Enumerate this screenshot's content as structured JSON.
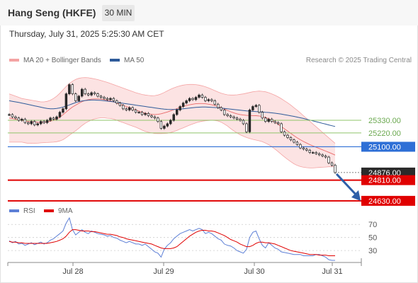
{
  "header": {
    "title": "Hang Seng (HKFE)",
    "timeframe": "30 MIN"
  },
  "datetime": "Thursday, July 31, 2025 5:25:30 AM CET",
  "credit": "Research © 2025 Trading Central",
  "colors": {
    "bollinger": "#f4a3a3",
    "ma50": "#2e5b9a",
    "rsi": "#5c7fd6",
    "rsi_ma": "#e00000",
    "up": "#2a2a2a",
    "down": "#ffffff",
    "green_level": "#8fc46a",
    "blue_level": "#2e6fd6",
    "red_level": "#e00000",
    "arrow": "#2e5fa8"
  },
  "chart_data": [
    {
      "type": "candlestick",
      "legend": [
        "MA 20 + Bollinger Bands",
        "MA 50"
      ],
      "x_ticks": [
        "Jul 28",
        "Jul 29",
        "Jul 30",
        "Jul 31"
      ],
      "ylim": [
        24580,
        25810
      ],
      "levels": [
        {
          "value": 25330,
          "label": "25330.00",
          "kind": "resistance"
        },
        {
          "value": 25220,
          "label": "25220.00",
          "kind": "resistance"
        },
        {
          "value": 25100,
          "label": "25100.00",
          "kind": "pivot"
        },
        {
          "value": 24876,
          "label": "24876.00",
          "kind": "last"
        },
        {
          "value": 24810,
          "label": "24810.00",
          "kind": "target"
        },
        {
          "value": 24630,
          "label": "24630.00",
          "kind": "target"
        }
      ],
      "close": [
        25380,
        25360,
        25350,
        25330,
        25340,
        25310,
        25300,
        25320,
        25290,
        25300,
        25320,
        25310,
        25330,
        25350,
        25340,
        25360,
        25400,
        25430,
        25560,
        25640,
        25560,
        25500,
        25540,
        25600,
        25560,
        25550,
        25570,
        25560,
        25540,
        25530,
        25520,
        25510,
        25520,
        25500,
        25480,
        25460,
        25430,
        25420,
        25440,
        25420,
        25400,
        25400,
        25380,
        25390,
        25370,
        25360,
        25350,
        25320,
        25260,
        25280,
        25300,
        25330,
        25380,
        25420,
        25450,
        25480,
        25500,
        25520,
        25510,
        25530,
        25550,
        25530,
        25500,
        25510,
        25500,
        25470,
        25440,
        25420,
        25380,
        25370,
        25360,
        25350,
        25340,
        25330,
        25300,
        25230,
        25420,
        25450,
        25460,
        25400,
        25350,
        25320,
        25340,
        25320,
        25310,
        25300,
        25230,
        25200,
        25180,
        25160,
        25140,
        25120,
        25090,
        25080,
        25070,
        25050,
        25050,
        25040,
        25030,
        25020,
        25010,
        24960,
        24940,
        24876
      ],
      "ma20": [
        25350,
        25345,
        25340,
        25335,
        25330,
        25325,
        25320,
        25318,
        25315,
        25313,
        25312,
        25313,
        25316,
        25322,
        25330,
        25342,
        25358,
        25378,
        25402,
        25425,
        25445,
        25462,
        25478,
        25492,
        25503,
        25510,
        25514,
        25516,
        25516,
        25514,
        25510,
        25504,
        25498,
        25490,
        25480,
        25470,
        25460,
        25450,
        25440,
        25430,
        25420,
        25410,
        25400,
        25392,
        25386,
        25382,
        25380,
        25382,
        25387,
        25394,
        25402,
        25412,
        25422,
        25432,
        25442,
        25450,
        25458,
        25465,
        25470,
        25474,
        25476,
        25476,
        25474,
        25470,
        25465,
        25458,
        25450,
        25440,
        25428,
        25416,
        25404,
        25394,
        25386,
        25380,
        25376,
        25373,
        25372,
        25371,
        25370,
        25368,
        25363,
        25355,
        25344,
        25330,
        25314,
        25296,
        25276,
        25256,
        25236,
        25216,
        25196,
        25178,
        25161,
        25146,
        25132,
        25119,
        25107,
        25096,
        25085,
        25074,
        25063,
        25052,
        25040,
        25028
      ],
      "bb_upper": [
        25560,
        25550,
        25540,
        25530,
        25520,
        25515,
        25510,
        25505,
        25500,
        25495,
        25490,
        25490,
        25495,
        25505,
        25520,
        25540,
        25565,
        25595,
        25625,
        25650,
        25670,
        25685,
        25695,
        25700,
        25702,
        25700,
        25695,
        25690,
        25684,
        25676,
        25668,
        25660,
        25650,
        25640,
        25630,
        25620,
        25610,
        25600,
        25590,
        25580,
        25570,
        25562,
        25555,
        25550,
        25546,
        25544,
        25545,
        25550,
        25560,
        25572,
        25586,
        25600,
        25612,
        25622,
        25630,
        25636,
        25640,
        25642,
        25642,
        25640,
        25636,
        25630,
        25622,
        25612,
        25600,
        25588,
        25576,
        25566,
        25558,
        25552,
        25550,
        25550,
        25552,
        25556,
        25560,
        25566,
        25572,
        25578,
        25582,
        25584,
        25582,
        25578,
        25570,
        25560,
        25548,
        25534,
        25518,
        25500,
        25482,
        25462,
        25440,
        25418,
        25394,
        25370,
        25346,
        25322,
        25298,
        25274,
        25250,
        25226,
        25202,
        25178,
        25154,
        25130
      ],
      "bb_lower": [
        25140,
        25140,
        25140,
        25140,
        25140,
        25135,
        25130,
        25131,
        25130,
        25131,
        25134,
        25136,
        25137,
        25139,
        25140,
        25144,
        25151,
        25161,
        25179,
        25200,
        25220,
        25239,
        25261,
        25284,
        25304,
        25320,
        25333,
        25342,
        25348,
        25352,
        25352,
        25348,
        25346,
        25340,
        25330,
        25320,
        25310,
        25300,
        25290,
        25280,
        25270,
        25258,
        25245,
        25234,
        25226,
        25220,
        25215,
        25214,
        25214,
        25216,
        25218,
        25224,
        25232,
        25242,
        25254,
        25264,
        25276,
        25288,
        25298,
        25308,
        25316,
        25322,
        25326,
        25328,
        25330,
        25328,
        25324,
        25314,
        25298,
        25280,
        25258,
        25238,
        25220,
        25204,
        25192,
        25180,
        25172,
        25164,
        25158,
        25152,
        25144,
        25132,
        25118,
        25100,
        25080,
        25058,
        25034,
        25012,
        24990,
        24970,
        24952,
        24938,
        24928,
        24922,
        24918,
        24916,
        24916,
        24918,
        24920,
        24922,
        24924,
        24926,
        24926,
        24926
      ],
      "ma50": [
        25500,
        25495,
        25490,
        25485,
        25480,
        25474,
        25468,
        25462,
        25456,
        25450,
        25444,
        25438,
        25433,
        25430,
        25430,
        25433,
        25438,
        25445,
        25454,
        25464,
        25474,
        25484,
        25492,
        25498,
        25502,
        25505,
        25506,
        25506,
        25505,
        25503,
        25500,
        25497,
        25494,
        25490,
        25486,
        25482,
        25478,
        25474,
        25470,
        25466,
        25462,
        25458,
        25454,
        25450,
        25446,
        25442,
        25438,
        25434,
        25430,
        25427,
        25425,
        25424,
        25424,
        25425,
        25427,
        25430,
        25433,
        25437,
        25440,
        25442,
        25444,
        25445,
        25445,
        25444,
        25443,
        25441,
        25439,
        25436,
        25433,
        25430,
        25427,
        25424,
        25421,
        25418,
        25415,
        25412,
        25410,
        25408,
        25406,
        25404,
        25402,
        25400,
        25398,
        25395,
        25392,
        25388,
        25384,
        25379,
        25374,
        25369,
        25364,
        25358,
        25352,
        25346,
        25339,
        25332,
        25325,
        25318,
        25311,
        25304,
        25297,
        25290,
        25283,
        25276
      ]
    },
    {
      "type": "line",
      "legend": [
        "RSI",
        "9MA"
      ],
      "ylim": [
        15,
        80
      ],
      "y_ticks": [
        70,
        50,
        30
      ],
      "rsi": [
        45,
        42,
        44,
        40,
        41,
        38,
        40,
        42,
        39,
        41,
        43,
        40,
        42,
        46,
        48,
        52,
        56,
        60,
        72,
        80,
        62,
        54,
        58,
        62,
        58,
        56,
        60,
        58,
        56,
        55,
        54,
        52,
        53,
        50,
        49,
        46,
        44,
        42,
        44,
        42,
        40,
        40,
        38,
        40,
        36,
        32,
        28,
        26,
        20,
        32,
        38,
        42,
        48,
        52,
        56,
        58,
        60,
        62,
        60,
        62,
        64,
        62,
        56,
        58,
        56,
        52,
        48,
        46,
        40,
        38,
        37,
        34,
        30,
        28,
        26,
        32,
        50,
        58,
        60,
        48,
        38,
        34,
        42,
        38,
        34,
        32,
        28,
        27,
        26,
        25,
        24,
        24,
        24,
        22,
        22,
        22,
        22,
        24,
        24,
        22,
        20,
        16,
        15,
        15
      ],
      "rsi_ma": [
        44,
        43,
        43,
        42,
        42,
        41,
        41,
        41,
        41,
        41,
        41,
        41,
        41,
        42,
        43,
        44,
        46,
        48,
        52,
        58,
        62,
        62,
        61,
        60,
        60,
        60,
        59,
        59,
        58,
        57,
        56,
        55,
        55,
        54,
        53,
        51,
        50,
        48,
        47,
        46,
        45,
        44,
        43,
        42,
        41,
        40,
        38,
        36,
        34,
        33,
        33,
        33,
        34,
        36,
        40,
        44,
        48,
        52,
        55,
        58,
        60,
        61,
        61,
        60,
        60,
        59,
        57,
        55,
        53,
        50,
        47,
        45,
        43,
        40,
        38,
        36,
        36,
        38,
        41,
        43,
        43,
        42,
        42,
        41,
        40,
        38,
        36,
        34,
        32,
        30,
        29,
        28,
        27,
        26,
        25,
        24,
        24,
        24,
        23,
        23,
        23,
        22,
        22,
        22
      ]
    }
  ]
}
